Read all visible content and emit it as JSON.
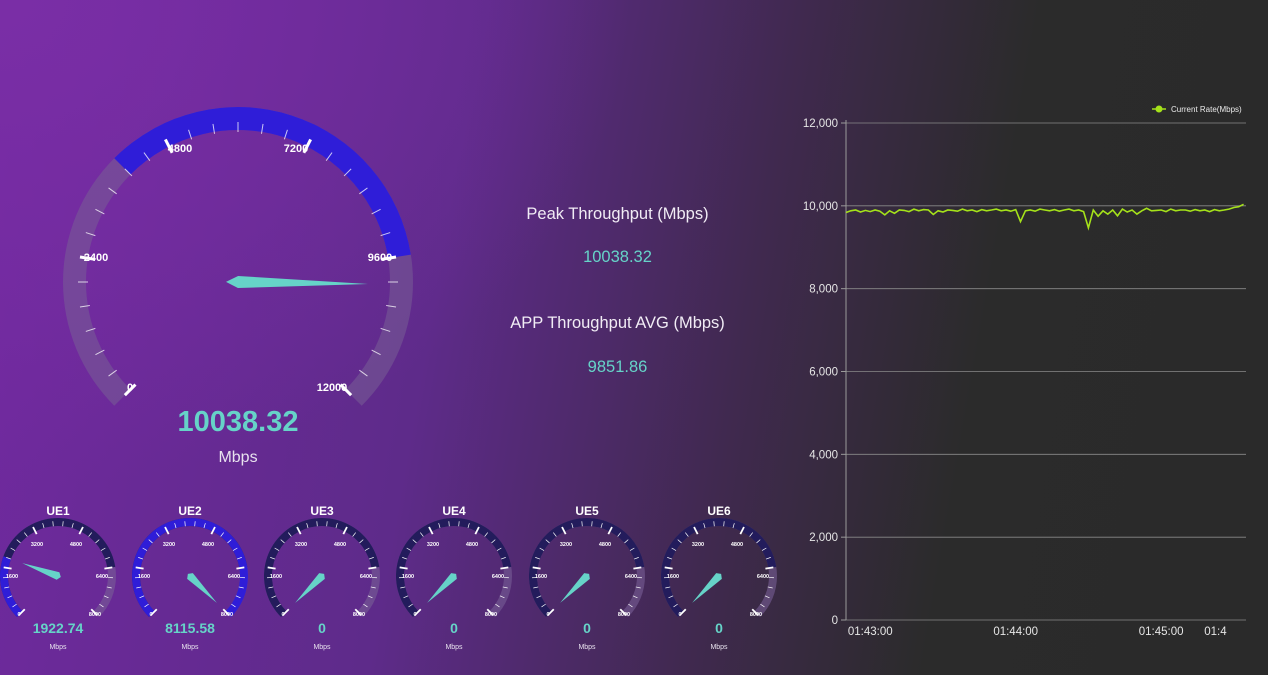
{
  "main_gauge": {
    "value": 10038.32,
    "value_text": "10038.32",
    "unit": "Mbps",
    "max": 12000,
    "tick_labels": [
      "0",
      "2400",
      "4800",
      "7200",
      "9600",
      "12000"
    ]
  },
  "stats": {
    "peak_label": "Peak Throughput (Mbps)",
    "peak_value": "10038.32",
    "avg_label": "APP Throughput AVG (Mbps)",
    "avg_value": "9851.86"
  },
  "ue_gauges": [
    {
      "name": "UE1",
      "value": 1922.74,
      "value_text": "1922.74",
      "unit": "Mbps"
    },
    {
      "name": "UE2",
      "value": 8115.58,
      "value_text": "8115.58",
      "unit": "Mbps"
    },
    {
      "name": "UE3",
      "value": 0,
      "value_text": "0",
      "unit": "Mbps"
    },
    {
      "name": "UE4",
      "value": 0,
      "value_text": "0",
      "unit": "Mbps"
    },
    {
      "name": "UE5",
      "value": 0,
      "value_text": "0",
      "unit": "Mbps"
    },
    {
      "name": "UE6",
      "value": 0,
      "value_text": "0",
      "unit": "Mbps"
    }
  ],
  "ue_gauge_scale": {
    "max": 8000,
    "tick_labels": [
      "0",
      "1600",
      "3200",
      "4800",
      "6400",
      "8000"
    ]
  },
  "chart_data": {
    "type": "line",
    "title": "",
    "legend": "Current Rate(Mbps)",
    "legend_position": "top-right",
    "ylim": [
      0,
      12000
    ],
    "y_ticks": [
      "0",
      "2,000",
      "4,000",
      "6,000",
      "8,000",
      "10,000",
      "12,000"
    ],
    "x_ticks": [
      {
        "t": 0,
        "label": "01:43:00"
      },
      {
        "t": 60,
        "label": "01:44:00"
      },
      {
        "t": 120,
        "label": "01:45:00"
      },
      {
        "t": 147,
        "label": "01:4"
      }
    ],
    "x_range": [
      -10,
      155
    ],
    "series": [
      {
        "name": "Current Rate(Mbps)",
        "x": [
          -10,
          -8,
          -6,
          -4,
          -2,
          0,
          2,
          4,
          6,
          8,
          10,
          12,
          14,
          16,
          18,
          20,
          22,
          24,
          26,
          28,
          30,
          32,
          34,
          36,
          38,
          40,
          42,
          44,
          46,
          48,
          50,
          52,
          54,
          56,
          58,
          60,
          62,
          64,
          66,
          68,
          70,
          72,
          74,
          76,
          78,
          80,
          82,
          84,
          86,
          88,
          90,
          92,
          94,
          96,
          98,
          100,
          102,
          104,
          106,
          108,
          110,
          112,
          114,
          116,
          118,
          120,
          122,
          124,
          126,
          128,
          130,
          132,
          134,
          136,
          138,
          140,
          142,
          144,
          146,
          148,
          150,
          152,
          154
        ],
        "values": [
          9840,
          9880,
          9900,
          9850,
          9890,
          9860,
          9900,
          9870,
          9780,
          9880,
          9820,
          9900,
          9890,
          9860,
          9920,
          9880,
          9910,
          9900,
          9790,
          9880,
          9850,
          9900,
          9890,
          9870,
          9920,
          9880,
          9900,
          9860,
          9910,
          9880,
          9900,
          9920,
          9880,
          9900,
          9870,
          9910,
          9620,
          9880,
          9900,
          9870,
          9920,
          9900,
          9880,
          9910,
          9870,
          9900,
          9920,
          9880,
          9900,
          9860,
          9470,
          9900,
          9750,
          9880,
          9800,
          9900,
          9760,
          9920,
          9850,
          9900,
          9800,
          9880,
          9940,
          9880,
          9890,
          9900,
          9860,
          9920,
          9880,
          9900,
          9900,
          9870,
          9910,
          9880,
          9900,
          9860,
          9910,
          9880,
          9900,
          9920,
          9960,
          9980,
          10038
        ]
      }
    ]
  },
  "colors": {
    "accent": "#66d3c8",
    "gauge_blue": "#2f1dd8",
    "line": "#a5e21a"
  }
}
